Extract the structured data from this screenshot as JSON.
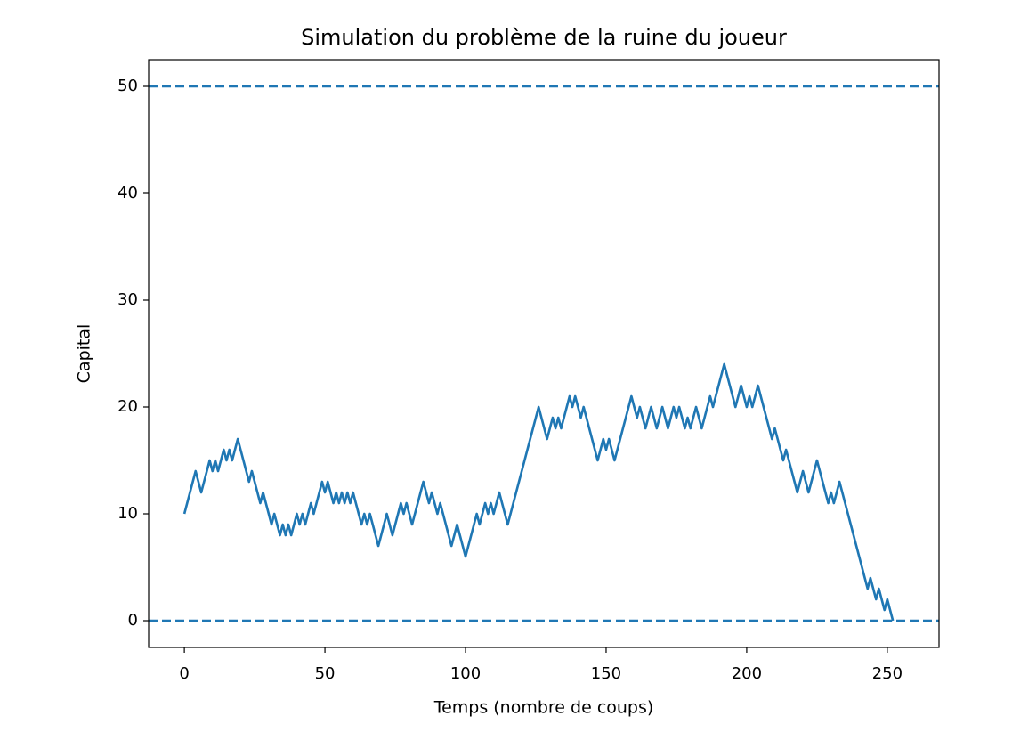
{
  "chart_data": {
    "type": "line",
    "title": "Simulation du problème de la ruine du joueur",
    "xlabel": "Temps (nombre de coups)",
    "ylabel": "Capital",
    "color": "#1f77b4",
    "values": [
      10,
      11,
      12,
      13,
      14,
      13,
      12,
      13,
      14,
      15,
      14,
      15,
      14,
      15,
      16,
      15,
      16,
      15,
      16,
      17,
      16,
      15,
      14,
      13,
      14,
      13,
      12,
      11,
      12,
      11,
      10,
      9,
      10,
      9,
      8,
      9,
      8,
      9,
      8,
      9,
      10,
      9,
      10,
      9,
      10,
      11,
      10,
      11,
      12,
      13,
      12,
      13,
      12,
      11,
      12,
      11,
      12,
      11,
      12,
      11,
      12,
      11,
      10,
      9,
      10,
      9,
      10,
      9,
      8,
      7,
      8,
      9,
      10,
      9,
      8,
      9,
      10,
      11,
      10,
      11,
      10,
      9,
      10,
      11,
      12,
      13,
      12,
      11,
      12,
      11,
      10,
      11,
      10,
      9,
      8,
      7,
      8,
      9,
      8,
      7,
      6,
      7,
      8,
      9,
      10,
      9,
      10,
      11,
      10,
      11,
      10,
      11,
      12,
      11,
      10,
      9,
      10,
      11,
      12,
      13,
      14,
      15,
      16,
      17,
      18,
      19,
      20,
      19,
      18,
      17,
      18,
      19,
      18,
      19,
      18,
      19,
      20,
      21,
      20,
      21,
      20,
      19,
      20,
      19,
      18,
      17,
      16,
      15,
      16,
      17,
      16,
      17,
      16,
      15,
      16,
      17,
      18,
      19,
      20,
      21,
      20,
      19,
      20,
      19,
      18,
      19,
      20,
      19,
      18,
      19,
      20,
      19,
      18,
      19,
      20,
      19,
      20,
      19,
      18,
      19,
      18,
      19,
      20,
      19,
      18,
      19,
      20,
      21,
      20,
      21,
      22,
      23,
      24,
      23,
      22,
      21,
      20,
      21,
      22,
      21,
      20,
      21,
      20,
      21,
      22,
      21,
      20,
      19,
      18,
      17,
      18,
      17,
      16,
      15,
      16,
      15,
      14,
      13,
      12,
      13,
      14,
      13,
      12,
      13,
      14,
      15,
      14,
      13,
      12,
      11,
      12,
      11,
      12,
      13,
      12,
      11,
      10,
      9,
      8,
      7,
      6,
      5,
      4,
      3,
      4,
      3,
      2,
      3,
      2,
      1,
      2,
      1,
      0
    ],
    "hlines": [
      0,
      50
    ],
    "xlim": [
      -12.7,
      268.4
    ],
    "xticks": [
      0,
      50,
      100,
      150,
      200,
      250
    ],
    "ylim": [
      -2.5,
      52.5
    ],
    "yticks": [
      0,
      10,
      20,
      30,
      40,
      50
    ]
  }
}
